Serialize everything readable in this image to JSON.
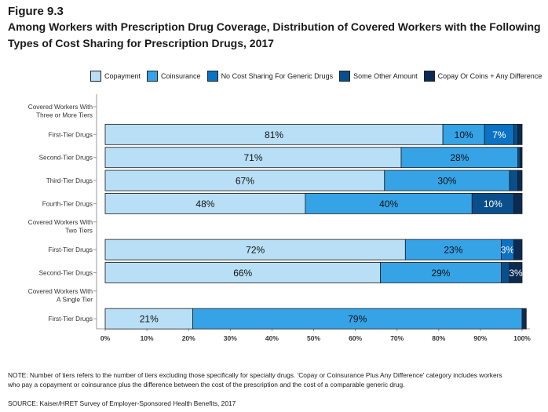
{
  "figure_label": "Figure 9.3",
  "title": "Among Workers with Prescription Drug Coverage, Distribution of Covered Workers with the Following Types of Cost Sharing for Prescription Drugs, 2017",
  "note": "NOTE: Number of tiers refers to the number of tiers excluding those specifically for specialty drugs. 'Copay or Coinsurance Plus Any Difference' category includes workers who pay a copayment or coinsurance plus the difference between the cost of the prescription and the cost of a comparable generic drug.",
  "source": "SOURCE: Kaiser/HRET Survey of Employer-Sponsored Health Benefits, 2017",
  "chart_data": {
    "type": "bar",
    "orientation": "horizontal",
    "stacked": true,
    "xlim": [
      0,
      100
    ],
    "x_ticks": [
      "0%",
      "10%",
      "20%",
      "30%",
      "40%",
      "50%",
      "60%",
      "70%",
      "80%",
      "90%",
      "100%"
    ],
    "legend_position": "top",
    "series": [
      {
        "name": "Copayment",
        "color": "#b8dff5"
      },
      {
        "name": "Coinsurance",
        "color": "#35a3e6"
      },
      {
        "name": "No Cost Sharing For Generic Drugs",
        "color": "#0c72c4"
      },
      {
        "name": "Some Other Amount",
        "color": "#0a4e8c"
      },
      {
        "name": "Copay Or Coins + Any Difference",
        "color": "#0b2b52"
      }
    ],
    "rows": [
      {
        "kind": "group",
        "label": "Covered Workers With Three or More Tiers",
        "lines": [
          "Covered Workers With",
          "Three or More Tiers"
        ]
      },
      {
        "kind": "bar",
        "label": "First-Tier Drugs",
        "values": [
          81,
          10,
          7,
          1,
          1
        ],
        "labels": [
          "81%",
          "10%",
          "7%",
          "",
          ""
        ]
      },
      {
        "kind": "bar",
        "label": "Second-Tier Drugs",
        "values": [
          71,
          28,
          0,
          0.5,
          0.5
        ],
        "labels": [
          "71%",
          "28%",
          "",
          "",
          ""
        ]
      },
      {
        "kind": "bar",
        "label": "Third-Tier Drugs",
        "values": [
          67,
          30,
          0,
          2,
          1
        ],
        "labels": [
          "67%",
          "30%",
          "",
          "",
          ""
        ]
      },
      {
        "kind": "bar",
        "label": "Fourth-Tier Drugs",
        "values": [
          48,
          40,
          0,
          10,
          2
        ],
        "labels": [
          "48%",
          "40%",
          "",
          "10%",
          ""
        ]
      },
      {
        "kind": "group",
        "label": "Covered Workers With Two Tiers",
        "lines": [
          "Covered Workers With",
          "Two Tiers"
        ]
      },
      {
        "kind": "bar",
        "label": "First-Tier Drugs",
        "values": [
          72,
          23,
          3,
          0,
          2
        ],
        "labels": [
          "72%",
          "23%",
          "3%",
          "",
          ""
        ]
      },
      {
        "kind": "bar",
        "label": "Second-Tier Drugs",
        "values": [
          66,
          29,
          0,
          2,
          3
        ],
        "labels": [
          "66%",
          "29%",
          "",
          "",
          "3%"
        ]
      },
      {
        "kind": "group",
        "label": "Covered Workers With A Single Tier",
        "lines": [
          "Covered Workers With",
          "A Single Tier"
        ]
      },
      {
        "kind": "bar",
        "label": "First-Tier Drugs",
        "values": [
          21,
          79,
          0,
          0,
          1
        ],
        "labels": [
          "21%",
          "79%",
          "",
          "",
          ""
        ]
      }
    ]
  }
}
